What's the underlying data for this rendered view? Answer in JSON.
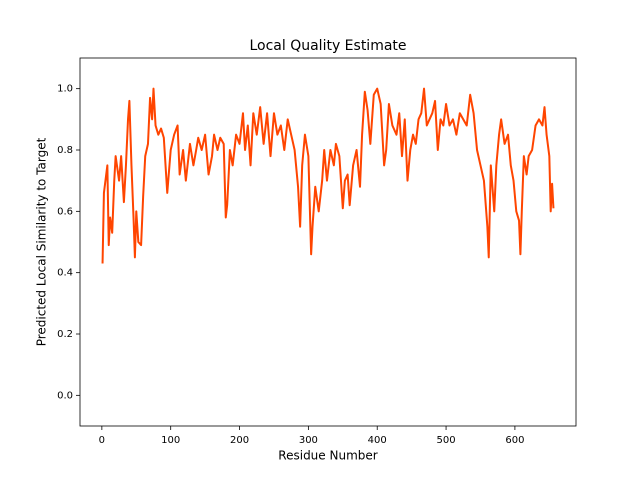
{
  "chart_data": {
    "type": "line",
    "title": "Local Quality Estimate",
    "xlabel": "Residue Number",
    "ylabel": "Predicted Local Similarity to Target",
    "color": "#ff4500",
    "x": [
      1,
      3,
      8,
      10,
      12,
      15,
      18,
      20,
      25,
      28,
      32,
      35,
      38,
      40,
      43,
      46,
      48,
      50,
      53,
      57,
      60,
      63,
      67,
      70,
      73,
      75,
      78,
      82,
      86,
      90,
      95,
      100,
      105,
      110,
      113,
      118,
      122,
      128,
      133,
      137,
      140,
      145,
      150,
      155,
      160,
      163,
      168,
      172,
      177,
      180,
      182,
      186,
      190,
      195,
      200,
      205,
      208,
      212,
      216,
      220,
      225,
      230,
      235,
      240,
      245,
      250,
      255,
      260,
      265,
      270,
      275,
      280,
      285,
      288,
      291,
      295,
      300,
      304,
      306,
      310,
      315,
      320,
      323,
      327,
      332,
      337,
      340,
      345,
      350,
      353,
      357,
      360,
      365,
      370,
      375,
      378,
      382,
      386,
      390,
      395,
      400,
      405,
      410,
      413,
      417,
      422,
      428,
      432,
      436,
      440,
      444,
      448,
      452,
      456,
      460,
      464,
      468,
      472,
      476,
      480,
      484,
      488,
      492,
      496,
      500,
      505,
      510,
      515,
      520,
      525,
      530,
      535,
      540,
      545,
      550,
      555,
      560,
      562,
      565,
      570,
      573,
      577,
      580,
      585,
      590,
      594,
      598,
      602,
      606,
      608,
      610,
      613,
      617,
      620,
      625,
      630,
      635,
      640,
      643,
      646,
      650,
      652,
      654,
      656
    ],
    "values": [
      0.43,
      0.66,
      0.75,
      0.49,
      0.58,
      0.53,
      0.7,
      0.78,
      0.7,
      0.78,
      0.63,
      0.75,
      0.9,
      0.96,
      0.75,
      0.58,
      0.45,
      0.6,
      0.5,
      0.49,
      0.65,
      0.78,
      0.82,
      0.97,
      0.9,
      1.0,
      0.88,
      0.85,
      0.87,
      0.84,
      0.66,
      0.8,
      0.85,
      0.88,
      0.72,
      0.8,
      0.7,
      0.82,
      0.75,
      0.8,
      0.84,
      0.8,
      0.85,
      0.72,
      0.78,
      0.85,
      0.8,
      0.84,
      0.82,
      0.58,
      0.62,
      0.8,
      0.75,
      0.85,
      0.82,
      0.92,
      0.8,
      0.88,
      0.75,
      0.92,
      0.85,
      0.94,
      0.82,
      0.92,
      0.78,
      0.92,
      0.85,
      0.88,
      0.8,
      0.9,
      0.85,
      0.8,
      0.68,
      0.55,
      0.75,
      0.85,
      0.78,
      0.46,
      0.55,
      0.68,
      0.6,
      0.7,
      0.8,
      0.7,
      0.8,
      0.75,
      0.82,
      0.78,
      0.61,
      0.7,
      0.72,
      0.62,
      0.75,
      0.8,
      0.68,
      0.85,
      0.99,
      0.93,
      0.82,
      0.98,
      1.0,
      0.95,
      0.75,
      0.8,
      0.95,
      0.88,
      0.85,
      0.92,
      0.78,
      0.9,
      0.7,
      0.8,
      0.85,
      0.82,
      0.9,
      0.92,
      1.0,
      0.88,
      0.9,
      0.92,
      0.96,
      0.8,
      0.9,
      0.88,
      0.95,
      0.88,
      0.9,
      0.85,
      0.92,
      0.9,
      0.88,
      0.98,
      0.92,
      0.8,
      0.75,
      0.7,
      0.55,
      0.45,
      0.75,
      0.6,
      0.75,
      0.85,
      0.9,
      0.82,
      0.85,
      0.75,
      0.7,
      0.6,
      0.57,
      0.46,
      0.6,
      0.78,
      0.72,
      0.78,
      0.8,
      0.88,
      0.9,
      0.88,
      0.94,
      0.85,
      0.78,
      0.6,
      0.69,
      0.61
    ],
    "xlim": [
      -31.75,
      688.75
    ],
    "ylim": [
      -0.1,
      1.1
    ],
    "xticks": [
      0,
      100,
      200,
      300,
      400,
      500,
      600
    ],
    "yticks": [
      {
        "value": 0,
        "label": "0.0"
      },
      0.2,
      0.4,
      0.6,
      0.8,
      {
        "value": 1,
        "label": "1.0"
      }
    ]
  }
}
